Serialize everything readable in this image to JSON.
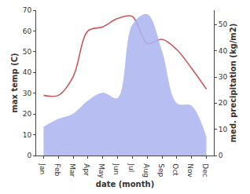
{
  "chart_data": {
    "type": "line",
    "categories": [
      "Jan",
      "Feb",
      "Mar",
      "Apr",
      "May",
      "Jun",
      "Jul",
      "Aug",
      "Sep",
      "Oct",
      "Nov",
      "Dec"
    ],
    "x_label": "date (month)",
    "y_label": "max temp (C)",
    "y2_label": "med. precipitation (kg/m2)",
    "series": [
      {
        "name": "med. precipitation",
        "type": "area",
        "axis": "y2",
        "color": "#aab4f0",
        "line_style": "smooth",
        "values": [
          11,
          14,
          16,
          21,
          24,
          22,
          50,
          54,
          40,
          20,
          19,
          7
        ]
      },
      {
        "name": "max temp",
        "type": "line",
        "axis": "y",
        "color": "#c8585a",
        "line_style": "smooth",
        "values": [
          29,
          29,
          38,
          60,
          62,
          66,
          67,
          54,
          56,
          51,
          42,
          32
        ]
      }
    ],
    "ylim": [
      0,
      70
    ],
    "yticks": [
      0,
      10,
      20,
      30,
      40,
      50,
      60,
      70
    ],
    "y2lim": [
      0,
      55.5
    ],
    "y2ticks": [
      0,
      10,
      20,
      30,
      40,
      50
    ],
    "grid": false
  }
}
